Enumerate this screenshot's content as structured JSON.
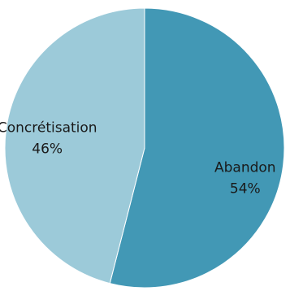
{
  "chart_data": {
    "type": "pie",
    "title": "",
    "legend": "none",
    "slices": [
      {
        "label": "Abandon",
        "value": 54,
        "value_label": "54%",
        "color": "#4298b5"
      },
      {
        "label": "Concrétisation",
        "value": 46,
        "value_label": "46%",
        "color": "#9ccad9"
      }
    ]
  }
}
